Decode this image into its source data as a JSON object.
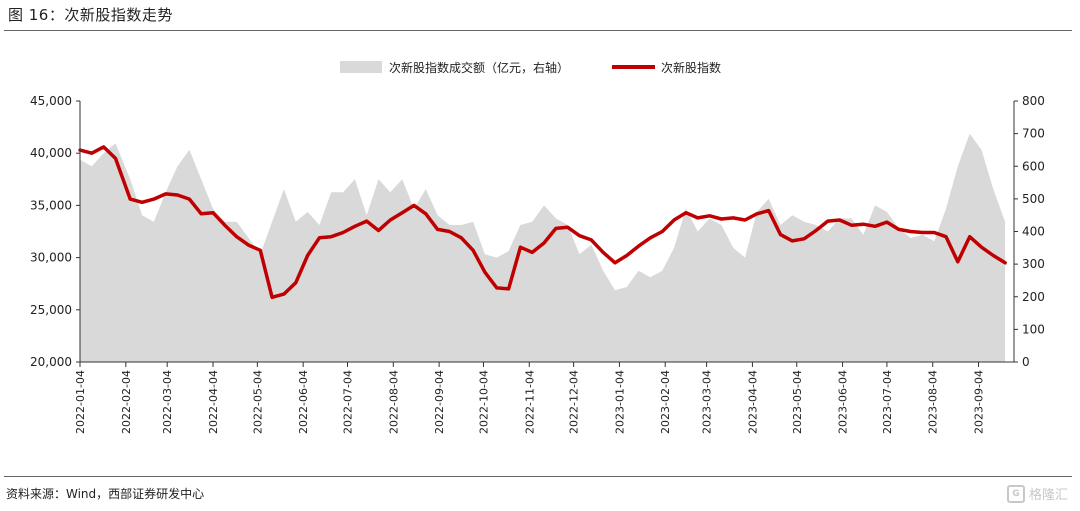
{
  "figure": {
    "title": "图 16：次新股指数走势",
    "source": "资料来源：Wind，西部证券研发中心",
    "watermark": "格隆汇"
  },
  "colors": {
    "index_line": "#c00000",
    "volume_area": "#d9d9d9",
    "axis": "#333333"
  },
  "chart_data": {
    "type": "line",
    "legend_position": "top-center",
    "grid": false,
    "x_tick_labels": [
      "2022-01-04",
      "2022-02-04",
      "2022-03-04",
      "2022-04-04",
      "2022-05-04",
      "2022-06-04",
      "2022-07-04",
      "2022-08-04",
      "2022-09-04",
      "2022-10-04",
      "2022-11-04",
      "2022-12-04",
      "2023-01-04",
      "2023-02-04",
      "2023-03-04",
      "2023-04-04",
      "2023-05-04",
      "2023-06-04",
      "2023-07-04",
      "2023-08-04",
      "2023-09-04"
    ],
    "y_left": {
      "min": 20000,
      "max": 45000,
      "ticks": [
        "20,000",
        "25,000",
        "30,000",
        "35,000",
        "40,000",
        "45,000"
      ]
    },
    "y_right": {
      "min": 0,
      "max": 800,
      "ticks": [
        "0",
        "100",
        "200",
        "300",
        "400",
        "500",
        "600",
        "700",
        "800"
      ]
    },
    "series": [
      {
        "name": "次新股指数成交额（亿元，右轴）",
        "kind": "area",
        "axis": "right",
        "x": [
          "2022-01-04",
          "2022-01-12",
          "2022-01-20",
          "2022-01-28",
          "2022-02-07",
          "2022-02-15",
          "2022-02-23",
          "2022-03-03",
          "2022-03-11",
          "2022-03-19",
          "2022-03-27",
          "2022-04-04",
          "2022-04-12",
          "2022-04-20",
          "2022-04-28",
          "2022-05-06",
          "2022-05-14",
          "2022-05-22",
          "2022-05-30",
          "2022-06-07",
          "2022-06-15",
          "2022-06-23",
          "2022-07-01",
          "2022-07-09",
          "2022-07-17",
          "2022-07-25",
          "2022-08-02",
          "2022-08-10",
          "2022-08-18",
          "2022-08-26",
          "2022-09-03",
          "2022-09-11",
          "2022-09-19",
          "2022-09-27",
          "2022-10-05",
          "2022-10-13",
          "2022-10-21",
          "2022-10-29",
          "2022-11-06",
          "2022-11-14",
          "2022-11-22",
          "2022-11-30",
          "2022-12-08",
          "2022-12-16",
          "2022-12-24",
          "2023-01-01",
          "2023-01-09",
          "2023-01-17",
          "2023-01-25",
          "2023-02-02",
          "2023-02-10",
          "2023-02-18",
          "2023-02-26",
          "2023-03-06",
          "2023-03-14",
          "2023-03-22",
          "2023-03-30",
          "2023-04-07",
          "2023-04-15",
          "2023-04-23",
          "2023-05-01",
          "2023-05-09",
          "2023-05-17",
          "2023-05-25",
          "2023-06-02",
          "2023-06-10",
          "2023-06-18",
          "2023-06-26",
          "2023-07-04",
          "2023-07-12",
          "2023-07-20",
          "2023-07-28",
          "2023-08-05",
          "2023-08-13",
          "2023-08-21",
          "2023-08-29",
          "2023-09-06",
          "2023-09-14",
          "2023-09-22"
        ],
        "values": [
          620,
          600,
          640,
          670,
          560,
          450,
          430,
          520,
          600,
          650,
          560,
          470,
          430,
          430,
          380,
          330,
          430,
          530,
          430,
          460,
          420,
          520,
          520,
          560,
          450,
          560,
          520,
          560,
          470,
          530,
          450,
          420,
          420,
          430,
          330,
          320,
          340,
          420,
          430,
          480,
          440,
          420,
          330,
          360,
          280,
          220,
          230,
          280,
          260,
          280,
          350,
          470,
          400,
          440,
          420,
          350,
          320,
          460,
          500,
          420,
          450,
          430,
          420,
          400,
          440,
          440,
          390,
          480,
          460,
          410,
          380,
          390,
          370,
          470,
          600,
          700,
          650,
          530,
          430
        ]
      },
      {
        "name": "次新股指数",
        "kind": "line",
        "axis": "left",
        "x": [
          "2022-01-04",
          "2022-01-12",
          "2022-01-20",
          "2022-01-28",
          "2022-02-07",
          "2022-02-15",
          "2022-02-23",
          "2022-03-03",
          "2022-03-11",
          "2022-03-19",
          "2022-03-27",
          "2022-04-04",
          "2022-04-12",
          "2022-04-20",
          "2022-04-28",
          "2022-05-06",
          "2022-05-14",
          "2022-05-22",
          "2022-05-30",
          "2022-06-07",
          "2022-06-15",
          "2022-06-23",
          "2022-07-01",
          "2022-07-09",
          "2022-07-17",
          "2022-07-25",
          "2022-08-02",
          "2022-08-10",
          "2022-08-18",
          "2022-08-26",
          "2022-09-03",
          "2022-09-11",
          "2022-09-19",
          "2022-09-27",
          "2022-10-05",
          "2022-10-13",
          "2022-10-21",
          "2022-10-29",
          "2022-11-06",
          "2022-11-14",
          "2022-11-22",
          "2022-11-30",
          "2022-12-08",
          "2022-12-16",
          "2022-12-24",
          "2023-01-01",
          "2023-01-09",
          "2023-01-17",
          "2023-01-25",
          "2023-02-02",
          "2023-02-10",
          "2023-02-18",
          "2023-02-26",
          "2023-03-06",
          "2023-03-14",
          "2023-03-22",
          "2023-03-30",
          "2023-04-07",
          "2023-04-15",
          "2023-04-23",
          "2023-05-01",
          "2023-05-09",
          "2023-05-17",
          "2023-05-25",
          "2023-06-02",
          "2023-06-10",
          "2023-06-18",
          "2023-06-26",
          "2023-07-04",
          "2023-07-12",
          "2023-07-20",
          "2023-07-28",
          "2023-08-05",
          "2023-08-13",
          "2023-08-21",
          "2023-08-29",
          "2023-09-06",
          "2023-09-14",
          "2023-09-22"
        ],
        "values": [
          40300,
          40000,
          40600,
          39500,
          35600,
          35300,
          35600,
          36100,
          36000,
          35600,
          34200,
          34300,
          33100,
          32000,
          31200,
          30700,
          26200,
          26500,
          27600,
          30200,
          31900,
          32000,
          32400,
          33000,
          33500,
          32600,
          33600,
          34300,
          35000,
          34200,
          32700,
          32500,
          31900,
          30700,
          28600,
          27100,
          27000,
          31000,
          30500,
          31400,
          32800,
          32900,
          32100,
          31700,
          30500,
          29500,
          30200,
          31100,
          31900,
          32500,
          33600,
          34300,
          33800,
          34000,
          33700,
          33800,
          33600,
          34200,
          34500,
          32200,
          31600,
          31800,
          32600,
          33500,
          33600,
          33100,
          33200,
          33000,
          33400,
          32700,
          32500,
          32400,
          32400,
          32000,
          29600,
          32000,
          31000,
          30200,
          29500
        ]
      }
    ]
  }
}
